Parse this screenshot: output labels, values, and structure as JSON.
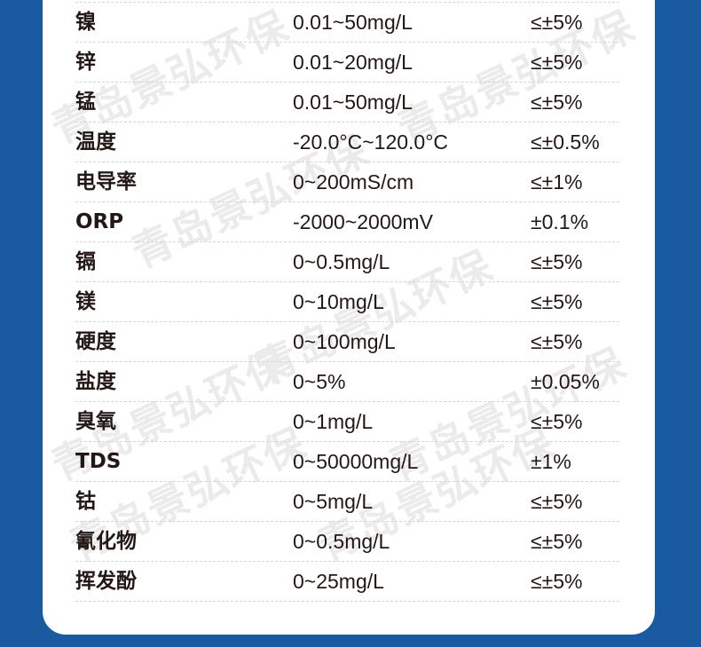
{
  "watermark": "青岛景弘环保",
  "colors": {
    "background": "#1a5aa0",
    "card": "#ffffff",
    "text": "#231815"
  },
  "rows": [
    {
      "name": "镍",
      "range": "0.01~50mg/L",
      "accuracy": "≤±5%"
    },
    {
      "name": "锌",
      "range": "0.01~20mg/L",
      "accuracy": "≤±5%"
    },
    {
      "name": "锰",
      "range": "0.01~50mg/L",
      "accuracy": "≤±5%"
    },
    {
      "name": "温度",
      "range": "-20.0°C~120.0°C",
      "accuracy": "≤±0.5%"
    },
    {
      "name": "电导率",
      "range": "0~200mS/cm",
      "accuracy": "≤±1%"
    },
    {
      "name": "ORP",
      "range": "-2000~2000mV",
      "accuracy": "±0.1%"
    },
    {
      "name": "镉",
      "range": "0~0.5mg/L",
      "accuracy": "≤±5%"
    },
    {
      "name": "镁",
      "range": "0~10mg/L",
      "accuracy": "≤±5%"
    },
    {
      "name": "硬度",
      "range": "0~100mg/L",
      "accuracy": "≤±5%"
    },
    {
      "name": "盐度",
      "range": "0~5%",
      "accuracy": "±0.05%"
    },
    {
      "name": "臭氧",
      "range": "0~1mg/L",
      "accuracy": "≤±5%"
    },
    {
      "name": "TDS",
      "range": "0~50000mg/L",
      "accuracy": "±1%"
    },
    {
      "name": "钴",
      "range": "0~5mg/L",
      "accuracy": "≤±5%"
    },
    {
      "name": "氰化物",
      "range": "0~0.5mg/L",
      "accuracy": "≤±5%"
    },
    {
      "name": "挥发酚",
      "range": "0~25mg/L",
      "accuracy": "≤±5%"
    }
  ]
}
